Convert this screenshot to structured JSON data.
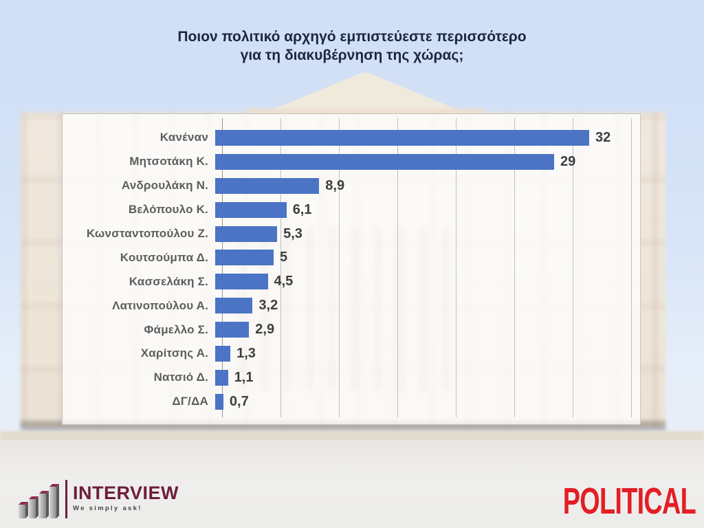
{
  "title": {
    "line1": "Ποιον πολιτικό αρχηγό εμπιστεύεστε περισσότερο",
    "line2": "για τη διακυβέρνηση της χώρας;"
  },
  "chart_data": {
    "type": "bar",
    "orientation": "horizontal",
    "title": "Ποιον πολιτικό αρχηγό εμπιστεύεστε περισσότερο για τη διακυβέρνηση της χώρας;",
    "categories": [
      "Κανέναν",
      "Μητσοτάκη Κ.",
      "Ανδρουλάκη Ν.",
      "Βελόπουλο Κ.",
      "Κωνσταντοπούλου Ζ.",
      "Κουτσούμπα Δ.",
      "Κασσελάκη Σ.",
      "Λατινοπούλου Α.",
      "Φάμελλο Σ.",
      "Χαρίτσης Α.",
      "Νατσιό Δ.",
      "ΔΓ/ΔΑ"
    ],
    "values": [
      32,
      29,
      8.9,
      6.1,
      5.3,
      5,
      4.5,
      3.2,
      2.9,
      1.3,
      1.1,
      0.7
    ],
    "value_labels": [
      "32",
      "29",
      "8,9",
      "6,1",
      "5,3",
      "5",
      "4,5",
      "3,2",
      "2,9",
      "1,3",
      "1,1",
      "0,7"
    ],
    "xlabel": "",
    "ylabel": "",
    "xlim": [
      0,
      36
    ],
    "gridline_step": 5,
    "grid": true,
    "legend": false,
    "bar_color": "#4B74C4",
    "value_label_color": "#3E3E3E",
    "category_label_color": "#5D5D5D"
  },
  "footer": {
    "interview_logo": {
      "name": "INTERVIEW",
      "tagline": "We simply ask!",
      "brand_color": "#6D1D3C",
      "icon": "ascending-3d-bars-icon"
    },
    "political_logo": {
      "text": "POLITICAL",
      "color": "#E31E24"
    }
  }
}
